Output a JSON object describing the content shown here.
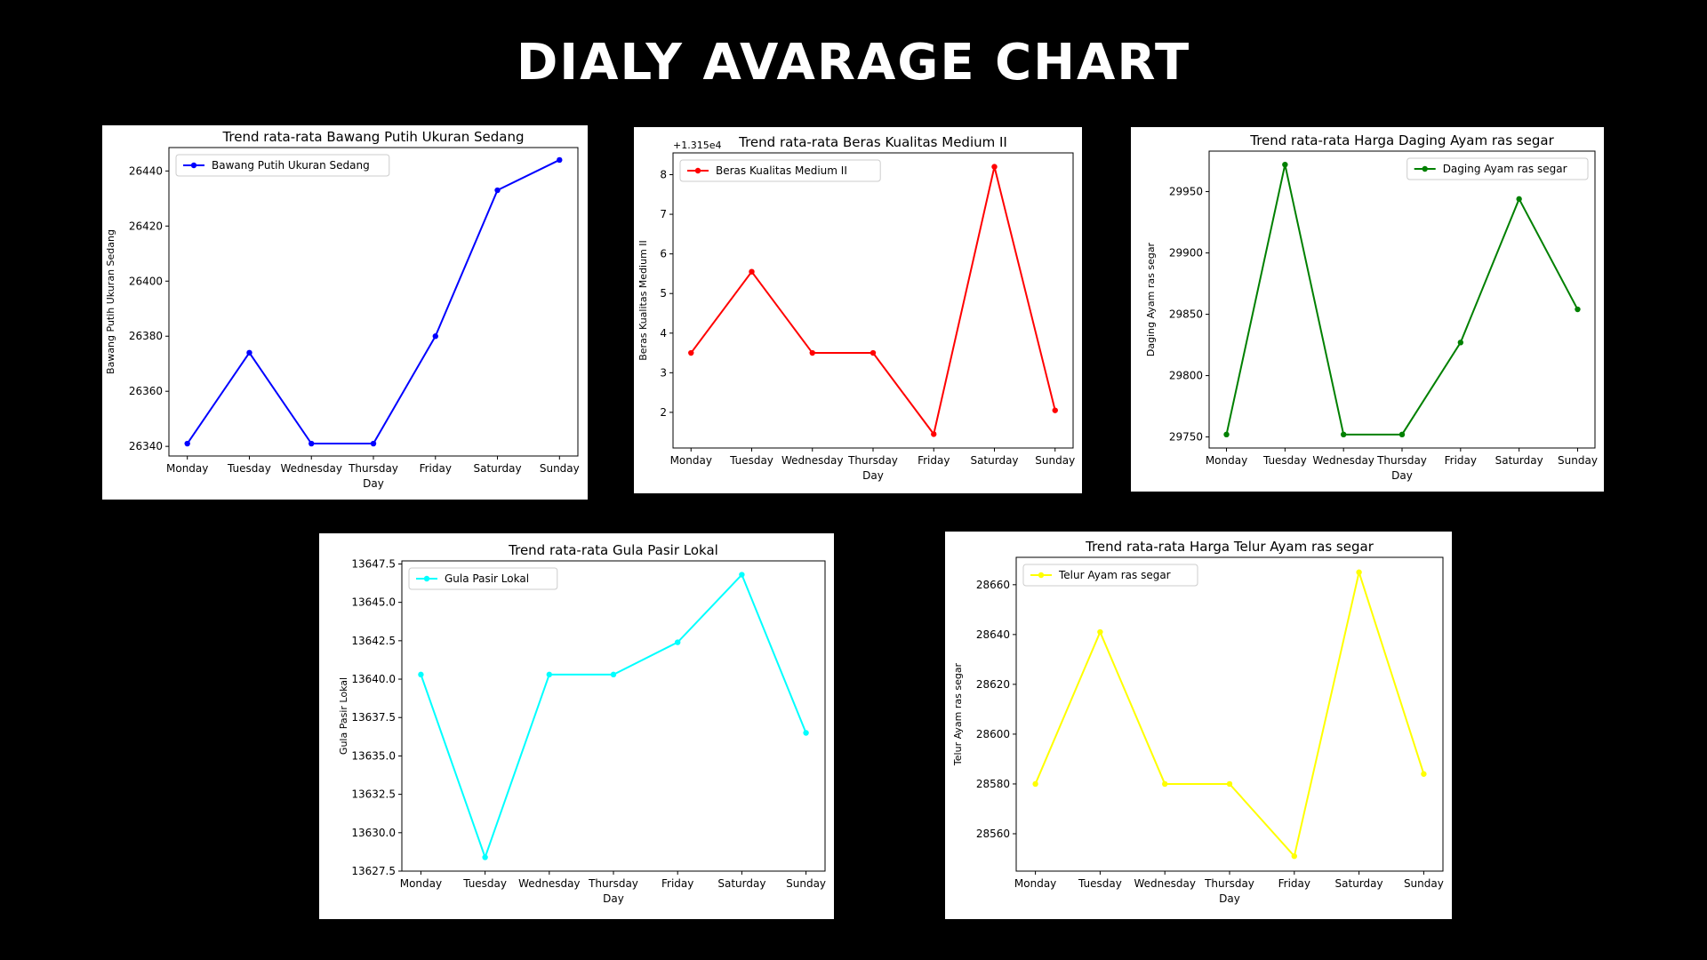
{
  "page": {
    "title": "DIALY AVARAGE CHART"
  },
  "chart_data": [
    {
      "type": "line",
      "title": "Trend rata-rata Bawang Putih Ukuran Sedang",
      "xlabel": "Day",
      "ylabel": "Bawang Putih Ukuran Sedang",
      "offset_label": "",
      "categories": [
        "Monday",
        "Tuesday",
        "Wednesday",
        "Thursday",
        "Friday",
        "Saturday",
        "Sunday"
      ],
      "series": [
        {
          "name": "Bawang Putih Ukuran Sedang",
          "values": [
            26341,
            26374,
            26341,
            26341,
            26380,
            26433,
            26444
          ]
        }
      ],
      "ylim": [
        26336.5,
        26448.5
      ],
      "yticks": [
        26340,
        26360,
        26380,
        26400,
        26420,
        26440
      ],
      "ytick_labels": [
        "26340",
        "26360",
        "26380",
        "26400",
        "26420",
        "26440"
      ],
      "color": "#0000ff",
      "legend": "upper-left"
    },
    {
      "type": "line",
      "title": "Trend rata-rata Beras Kualitas Medium II",
      "xlabel": "Day",
      "ylabel": "Beras Kualitas Medium II",
      "offset_label": "+1.315e4",
      "categories": [
        "Monday",
        "Tuesday",
        "Wednesday",
        "Thursday",
        "Friday",
        "Saturday",
        "Sunday"
      ],
      "series": [
        {
          "name": "Beras Kualitas Medium II",
          "values": [
            3.5,
            5.55,
            3.5,
            3.5,
            1.45,
            8.2,
            2.05
          ]
        }
      ],
      "ylim": [
        1.1,
        8.55
      ],
      "yticks": [
        2,
        3,
        4,
        5,
        6,
        7,
        8
      ],
      "ytick_labels": [
        "2",
        "3",
        "4",
        "5",
        "6",
        "7",
        "8"
      ],
      "color": "#ff0000",
      "legend": "upper-left"
    },
    {
      "type": "line",
      "title": "Trend rata-rata Harga Daging Ayam ras segar",
      "xlabel": "Day",
      "ylabel": "Daging Ayam ras segar",
      "offset_label": "",
      "categories": [
        "Monday",
        "Tuesday",
        "Wednesday",
        "Thursday",
        "Friday",
        "Saturday",
        "Sunday"
      ],
      "series": [
        {
          "name": "Daging Ayam ras segar",
          "values": [
            29752,
            29972,
            29752,
            29752,
            29827,
            29944,
            29854
          ]
        }
      ],
      "ylim": [
        29741,
        29983
      ],
      "yticks": [
        29750,
        29800,
        29850,
        29900,
        29950
      ],
      "ytick_labels": [
        "29750",
        "29800",
        "29850",
        "29900",
        "29950"
      ],
      "color": "#008000",
      "legend": "upper-right"
    },
    {
      "type": "line",
      "title": "Trend rata-rata Gula Pasir Lokal",
      "xlabel": "Day",
      "ylabel": "Gula Pasir Lokal",
      "offset_label": "",
      "categories": [
        "Monday",
        "Tuesday",
        "Wednesday",
        "Thursday",
        "Friday",
        "Saturday",
        "Sunday"
      ],
      "series": [
        {
          "name": "Gula Pasir Lokal",
          "values": [
            13640.3,
            13628.4,
            13640.3,
            13640.3,
            13642.4,
            13646.8,
            13636.5
          ]
        }
      ],
      "ylim": [
        13627.5,
        13647.7
      ],
      "yticks": [
        13627.5,
        13630.0,
        13632.5,
        13635.0,
        13637.5,
        13640.0,
        13642.5,
        13645.0,
        13647.5
      ],
      "ytick_labels": [
        "13627.5",
        "13630.0",
        "13632.5",
        "13635.0",
        "13637.5",
        "13640.0",
        "13642.5",
        "13645.0",
        "13647.5"
      ],
      "color": "#00ffff",
      "legend": "upper-left"
    },
    {
      "type": "line",
      "title": "Trend rata-rata Harga Telur Ayam ras segar",
      "xlabel": "Day",
      "ylabel": "Telur Ayam ras segar",
      "offset_label": "",
      "categories": [
        "Monday",
        "Tuesday",
        "Wednesday",
        "Thursday",
        "Friday",
        "Saturday",
        "Sunday"
      ],
      "series": [
        {
          "name": "Telur Ayam ras segar",
          "values": [
            28580,
            28641,
            28580,
            28580,
            28551,
            28665,
            28584
          ]
        }
      ],
      "ylim": [
        28545,
        28671
      ],
      "yticks": [
        28560,
        28580,
        28600,
        28620,
        28640,
        28660
      ],
      "ytick_labels": [
        "28560",
        "28580",
        "28600",
        "28620",
        "28640",
        "28660"
      ],
      "color": "#ffff00",
      "legend": "upper-left"
    }
  ]
}
